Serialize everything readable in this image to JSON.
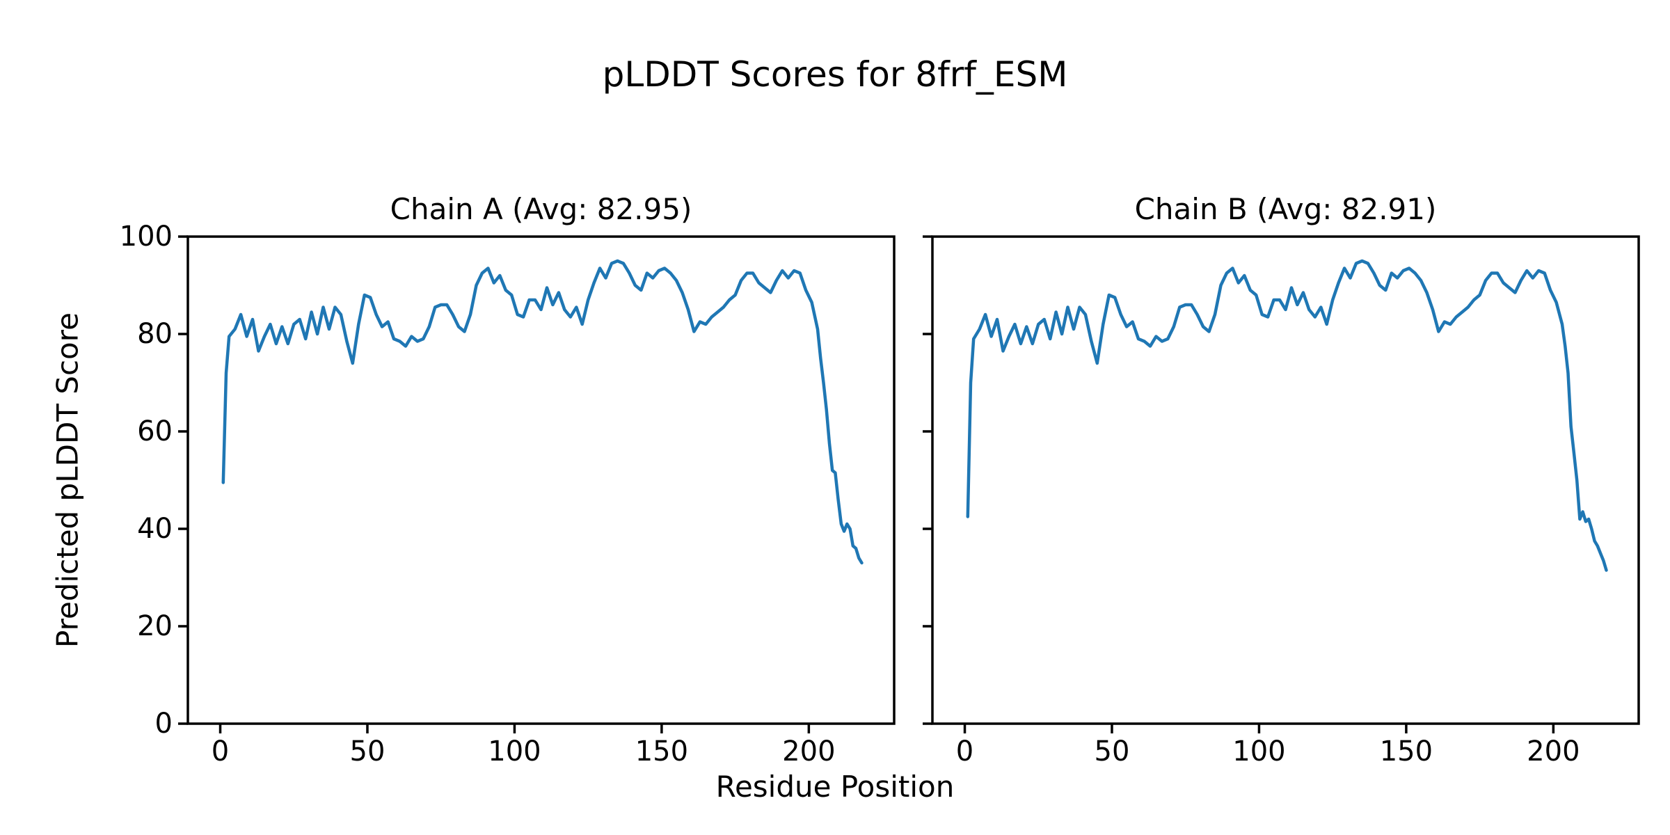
{
  "figure": {
    "title": "pLDDT Scores for 8frf_ESM",
    "xlabel": "Residue Position",
    "background_color": "#ffffff",
    "text_color": "#000000"
  },
  "chart_data": [
    {
      "type": "line",
      "title": "Chain A (Avg: 82.95)",
      "chain": "A",
      "avg": 82.95,
      "ylabel": "Predicted pLDDT Score",
      "xlim": [
        -11,
        229
      ],
      "ylim": [
        0,
        100
      ],
      "xticks": [
        0,
        50,
        100,
        150,
        200
      ],
      "yticks": [
        0,
        20,
        40,
        60,
        80,
        100
      ],
      "y_tick_labels_visible": true,
      "grid": false,
      "line_color": "#1f77b4",
      "series": [
        {
          "name": "pLDDT",
          "points": [
            [
              1,
              49.5
            ],
            [
              2,
              72
            ],
            [
              3,
              79.5
            ],
            [
              5,
              81
            ],
            [
              7,
              84
            ],
            [
              9,
              79.5
            ],
            [
              11,
              83
            ],
            [
              13,
              76.5
            ],
            [
              15,
              79.5
            ],
            [
              17,
              82
            ],
            [
              19,
              78
            ],
            [
              21,
              81.5
            ],
            [
              23,
              78
            ],
            [
              25,
              82
            ],
            [
              27,
              83
            ],
            [
              29,
              79
            ],
            [
              31,
              84.5
            ],
            [
              33,
              80
            ],
            [
              35,
              85.5
            ],
            [
              37,
              81
            ],
            [
              39,
              85.5
            ],
            [
              41,
              84
            ],
            [
              43,
              78.5
            ],
            [
              45,
              74
            ],
            [
              47,
              82
            ],
            [
              49,
              88
            ],
            [
              51,
              87.5
            ],
            [
              53,
              84
            ],
            [
              55,
              81.5
            ],
            [
              57,
              82.5
            ],
            [
              59,
              79
            ],
            [
              61,
              78.5
            ],
            [
              63,
              77.5
            ],
            [
              65,
              79.5
            ],
            [
              67,
              78.5
            ],
            [
              69,
              79
            ],
            [
              71,
              81.5
            ],
            [
              73,
              85.5
            ],
            [
              75,
              86
            ],
            [
              77,
              86
            ],
            [
              79,
              84
            ],
            [
              81,
              81.5
            ],
            [
              83,
              80.5
            ],
            [
              85,
              84
            ],
            [
              87,
              90
            ],
            [
              89,
              92.5
            ],
            [
              91,
              93.5
            ],
            [
              93,
              90.5
            ],
            [
              95,
              92
            ],
            [
              97,
              89
            ],
            [
              99,
              88
            ],
            [
              101,
              84
            ],
            [
              103,
              83.5
            ],
            [
              105,
              87
            ],
            [
              107,
              87
            ],
            [
              109,
              85
            ],
            [
              111,
              89.5
            ],
            [
              113,
              86
            ],
            [
              115,
              88.5
            ],
            [
              117,
              85
            ],
            [
              119,
              83.5
            ],
            [
              121,
              85.5
            ],
            [
              123,
              82
            ],
            [
              125,
              87
            ],
            [
              127,
              90.5
            ],
            [
              129,
              93.5
            ],
            [
              131,
              91.5
            ],
            [
              133,
              94.5
            ],
            [
              135,
              95
            ],
            [
              137,
              94.5
            ],
            [
              139,
              92.5
            ],
            [
              141,
              90
            ],
            [
              143,
              89
            ],
            [
              145,
              92.5
            ],
            [
              147,
              91.5
            ],
            [
              149,
              93
            ],
            [
              151,
              93.5
            ],
            [
              153,
              92.5
            ],
            [
              155,
              91
            ],
            [
              157,
              88.5
            ],
            [
              159,
              85
            ],
            [
              161,
              80.5
            ],
            [
              163,
              82.5
            ],
            [
              165,
              82
            ],
            [
              167,
              83.5
            ],
            [
              169,
              84.5
            ],
            [
              171,
              85.5
            ],
            [
              173,
              87
            ],
            [
              175,
              88
            ],
            [
              177,
              91
            ],
            [
              179,
              92.5
            ],
            [
              181,
              92.5
            ],
            [
              183,
              90.5
            ],
            [
              185,
              89.5
            ],
            [
              187,
              88.5
            ],
            [
              189,
              91
            ],
            [
              191,
              93
            ],
            [
              193,
              91.5
            ],
            [
              195,
              93
            ],
            [
              197,
              92.5
            ],
            [
              199,
              89
            ],
            [
              201,
              86.5
            ],
            [
              203,
              81
            ],
            [
              204,
              75
            ],
            [
              205,
              70
            ],
            [
              206,
              64.5
            ],
            [
              207,
              57.5
            ],
            [
              208,
              52
            ],
            [
              209,
              51.5
            ],
            [
              210,
              46
            ],
            [
              211,
              41
            ],
            [
              212,
              39.5
            ],
            [
              213,
              41
            ],
            [
              214,
              40
            ],
            [
              215,
              36.5
            ],
            [
              216,
              36
            ],
            [
              217,
              34
            ],
            [
              218,
              33
            ]
          ]
        }
      ]
    },
    {
      "type": "line",
      "title": "Chain B (Avg: 82.91)",
      "chain": "B",
      "avg": 82.91,
      "ylabel": "Predicted pLDDT Score",
      "xlim": [
        -11,
        229
      ],
      "ylim": [
        0,
        100
      ],
      "xticks": [
        0,
        50,
        100,
        150,
        200
      ],
      "yticks": [
        0,
        20,
        40,
        60,
        80,
        100
      ],
      "y_tick_labels_visible": false,
      "grid": false,
      "line_color": "#1f77b4",
      "series": [
        {
          "name": "pLDDT",
          "points": [
            [
              1,
              42.5
            ],
            [
              2,
              70
            ],
            [
              3,
              79
            ],
            [
              5,
              81
            ],
            [
              7,
              84
            ],
            [
              9,
              79.5
            ],
            [
              11,
              83
            ],
            [
              13,
              76.5
            ],
            [
              15,
              79.5
            ],
            [
              17,
              82
            ],
            [
              19,
              78
            ],
            [
              21,
              81.5
            ],
            [
              23,
              78
            ],
            [
              25,
              82
            ],
            [
              27,
              83
            ],
            [
              29,
              79
            ],
            [
              31,
              84.5
            ],
            [
              33,
              80
            ],
            [
              35,
              85.5
            ],
            [
              37,
              81
            ],
            [
              39,
              85.5
            ],
            [
              41,
              84
            ],
            [
              43,
              78.5
            ],
            [
              45,
              74
            ],
            [
              47,
              82
            ],
            [
              49,
              88
            ],
            [
              51,
              87.5
            ],
            [
              53,
              84
            ],
            [
              55,
              81.5
            ],
            [
              57,
              82.5
            ],
            [
              59,
              79
            ],
            [
              61,
              78.5
            ],
            [
              63,
              77.5
            ],
            [
              65,
              79.5
            ],
            [
              67,
              78.5
            ],
            [
              69,
              79
            ],
            [
              71,
              81.5
            ],
            [
              73,
              85.5
            ],
            [
              75,
              86
            ],
            [
              77,
              86
            ],
            [
              79,
              84
            ],
            [
              81,
              81.5
            ],
            [
              83,
              80.5
            ],
            [
              85,
              84
            ],
            [
              87,
              90
            ],
            [
              89,
              92.5
            ],
            [
              91,
              93.5
            ],
            [
              93,
              90.5
            ],
            [
              95,
              92
            ],
            [
              97,
              89
            ],
            [
              99,
              88
            ],
            [
              101,
              84
            ],
            [
              103,
              83.5
            ],
            [
              105,
              87
            ],
            [
              107,
              87
            ],
            [
              109,
              85
            ],
            [
              111,
              89.5
            ],
            [
              113,
              86
            ],
            [
              115,
              88.5
            ],
            [
              117,
              85
            ],
            [
              119,
              83.5
            ],
            [
              121,
              85.5
            ],
            [
              123,
              82
            ],
            [
              125,
              87
            ],
            [
              127,
              90.5
            ],
            [
              129,
              93.5
            ],
            [
              131,
              91.5
            ],
            [
              133,
              94.5
            ],
            [
              135,
              95
            ],
            [
              137,
              94.5
            ],
            [
              139,
              92.5
            ],
            [
              141,
              90
            ],
            [
              143,
              89
            ],
            [
              145,
              92.5
            ],
            [
              147,
              91.5
            ],
            [
              149,
              93
            ],
            [
              151,
              93.5
            ],
            [
              153,
              92.5
            ],
            [
              155,
              91
            ],
            [
              157,
              88.5
            ],
            [
              159,
              85
            ],
            [
              161,
              80.5
            ],
            [
              163,
              82.5
            ],
            [
              165,
              82
            ],
            [
              167,
              83.5
            ],
            [
              169,
              84.5
            ],
            [
              171,
              85.5
            ],
            [
              173,
              87
            ],
            [
              175,
              88
            ],
            [
              177,
              91
            ],
            [
              179,
              92.5
            ],
            [
              181,
              92.5
            ],
            [
              183,
              90.5
            ],
            [
              185,
              89.5
            ],
            [
              187,
              88.5
            ],
            [
              189,
              91
            ],
            [
              191,
              93
            ],
            [
              193,
              91.5
            ],
            [
              195,
              93
            ],
            [
              197,
              92.5
            ],
            [
              199,
              89
            ],
            [
              201,
              86.5
            ],
            [
              203,
              82
            ],
            [
              204,
              77.5
            ],
            [
              205,
              72
            ],
            [
              206,
              61
            ],
            [
              207,
              55.5
            ],
            [
              208,
              50
            ],
            [
              209,
              42
            ],
            [
              210,
              43.5
            ],
            [
              211,
              41.5
            ],
            [
              212,
              42
            ],
            [
              213,
              40
            ],
            [
              214,
              37.5
            ],
            [
              215,
              36.5
            ],
            [
              216,
              35
            ],
            [
              217,
              33.5
            ],
            [
              218,
              31.5
            ]
          ]
        }
      ]
    }
  ]
}
